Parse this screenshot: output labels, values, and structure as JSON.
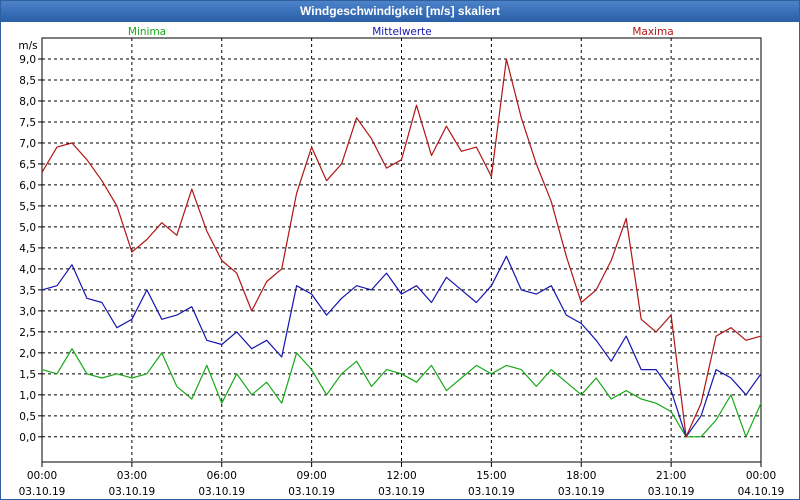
{
  "window": {
    "title": "Windgeschwindigkeit [m/s] skaliert"
  },
  "chart_data": {
    "type": "line",
    "title": "Windgeschwindigkeit [m/s] skaliert",
    "ylabel": "m/s",
    "xlabel": "",
    "ylim": [
      -0.6,
      9.5
    ],
    "xlim": [
      0,
      24
    ],
    "grid": true,
    "yticks": [
      "0,0",
      "0,5",
      "1,0",
      "1,5",
      "2,0",
      "2,5",
      "3,0",
      "3,5",
      "4,0",
      "4,5",
      "5,0",
      "5,5",
      "6,0",
      "6,5",
      "7,0",
      "7,5",
      "8,0",
      "8,5",
      "9,0"
    ],
    "ytick_values": [
      0,
      0.5,
      1,
      1.5,
      2,
      2.5,
      3,
      3.5,
      4,
      4.5,
      5,
      5.5,
      6,
      6.5,
      7,
      7.5,
      8,
      8.5,
      9
    ],
    "xticks": [
      {
        "time": "00:00",
        "date": "03.10.19"
      },
      {
        "time": "03:00",
        "date": "03.10.19"
      },
      {
        "time": "06:00",
        "date": "03.10.19"
      },
      {
        "time": "09:00",
        "date": "03.10.19"
      },
      {
        "time": "12:00",
        "date": "03.10.19"
      },
      {
        "time": "15:00",
        "date": "03.10.19"
      },
      {
        "time": "18:00",
        "date": "03.10.19"
      },
      {
        "time": "21:00",
        "date": "03.10.19"
      },
      {
        "time": "00:00",
        "date": "04.10.19"
      }
    ],
    "xtick_values": [
      0,
      3,
      6,
      9,
      12,
      15,
      18,
      21,
      24
    ],
    "legend": [
      "Minima",
      "Mittelwerte",
      "Maxima"
    ],
    "series": [
      {
        "name": "Minima",
        "color": "#17a817",
        "x": [
          0,
          0.5,
          1,
          1.5,
          2,
          2.5,
          3,
          3.5,
          4,
          4.5,
          5,
          5.5,
          6,
          6.5,
          7,
          7.5,
          8,
          8.5,
          9,
          9.5,
          10,
          10.5,
          11,
          11.5,
          12,
          12.5,
          13,
          13.5,
          14,
          14.5,
          15,
          15.5,
          16,
          16.5,
          17,
          17.5,
          18,
          18.5,
          19,
          19.5,
          20,
          20.5,
          21,
          21.5,
          22,
          22.5,
          23,
          23.5,
          24
        ],
        "values": [
          1.6,
          1.5,
          2.1,
          1.5,
          1.4,
          1.5,
          1.4,
          1.5,
          2.0,
          1.2,
          0.9,
          1.7,
          0.8,
          1.5,
          1.0,
          1.3,
          0.8,
          2.0,
          1.6,
          1.0,
          1.5,
          1.8,
          1.2,
          1.6,
          1.5,
          1.3,
          1.7,
          1.1,
          1.4,
          1.7,
          1.5,
          1.7,
          1.6,
          1.2,
          1.6,
          1.3,
          1.0,
          1.4,
          0.9,
          1.1,
          0.9,
          0.8,
          0.6,
          0.0,
          0.0,
          0.4,
          1.0,
          0.0,
          0.8
        ]
      },
      {
        "name": "Mittelwerte",
        "color": "#1515b0",
        "x": [
          0,
          0.5,
          1,
          1.5,
          2,
          2.5,
          3,
          3.5,
          4,
          4.5,
          5,
          5.5,
          6,
          6.5,
          7,
          7.5,
          8,
          8.5,
          9,
          9.5,
          10,
          10.5,
          11,
          11.5,
          12,
          12.5,
          13,
          13.5,
          14,
          14.5,
          15,
          15.5,
          16,
          16.5,
          17,
          17.5,
          18,
          18.5,
          19,
          19.5,
          20,
          20.5,
          21,
          21.5,
          22,
          22.5,
          23,
          23.5,
          24
        ],
        "values": [
          3.5,
          3.6,
          4.1,
          3.3,
          3.2,
          2.6,
          2.8,
          3.5,
          2.8,
          2.9,
          3.1,
          2.3,
          2.2,
          2.5,
          2.1,
          2.3,
          1.9,
          3.6,
          3.4,
          2.9,
          3.3,
          3.6,
          3.5,
          3.9,
          3.4,
          3.6,
          3.2,
          3.8,
          3.5,
          3.2,
          3.6,
          4.3,
          3.5,
          3.4,
          3.6,
          2.9,
          2.7,
          2.3,
          1.8,
          2.4,
          1.6,
          1.6,
          1.1,
          0.0,
          0.5,
          1.6,
          1.4,
          1.0,
          1.5
        ]
      },
      {
        "name": "Maxima",
        "color": "#b01515",
        "x": [
          0,
          0.5,
          1,
          1.5,
          2,
          2.5,
          3,
          3.5,
          4,
          4.5,
          5,
          5.5,
          6,
          6.5,
          7,
          7.5,
          8,
          8.5,
          9,
          9.5,
          10,
          10.5,
          11,
          11.5,
          12,
          12.5,
          13,
          13.5,
          14,
          14.5,
          15,
          15.5,
          16,
          16.5,
          17,
          17.5,
          18,
          18.5,
          19,
          19.5,
          20,
          20.5,
          21,
          21.5,
          22,
          22.5,
          23,
          23.5,
          24
        ],
        "values": [
          6.3,
          6.9,
          7.0,
          6.6,
          6.1,
          5.5,
          4.4,
          4.7,
          5.1,
          4.8,
          5.9,
          4.9,
          4.2,
          3.9,
          3.0,
          3.7,
          4.0,
          5.8,
          6.9,
          6.1,
          6.5,
          7.6,
          7.1,
          6.4,
          6.6,
          7.9,
          6.7,
          7.4,
          6.8,
          6.9,
          6.2,
          9.0,
          7.6,
          6.5,
          5.6,
          4.3,
          3.2,
          3.5,
          4.2,
          5.2,
          2.8,
          2.5,
          2.9,
          0.0,
          0.8,
          2.4,
          2.6,
          2.3,
          2.4
        ]
      }
    ]
  }
}
